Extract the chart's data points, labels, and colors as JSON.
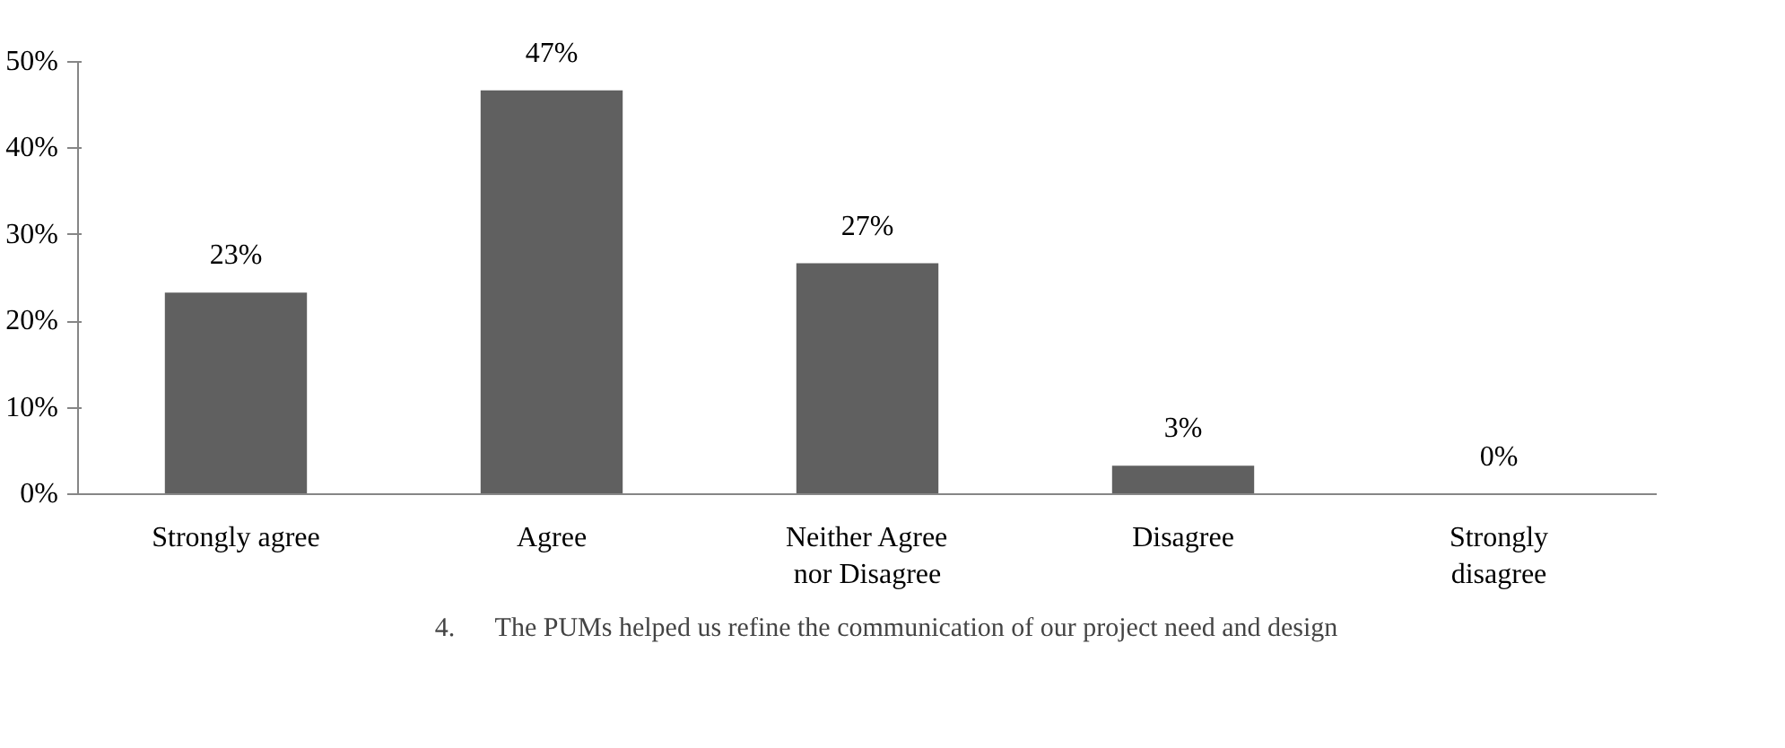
{
  "chart_data": {
    "type": "bar",
    "categories": [
      "Strongly agree",
      "Agree",
      "Neither Agree\nnor Disagree",
      "Disagree",
      "Strongly\ndisagree"
    ],
    "series": [
      {
        "name": "4.      The PUMs helped us refine the communication of our project need and design",
        "color": "#606060",
        "values": [
          23.3,
          46.7,
          26.7,
          3.3,
          0
        ],
        "value_labels": [
          "23%",
          "47%",
          "27%",
          "3%",
          "0%"
        ]
      }
    ],
    "ylim": [
      0,
      50
    ],
    "yticks": [
      {
        "value": 0,
        "label": "0%"
      },
      {
        "value": 10,
        "label": "10%"
      },
      {
        "value": 20,
        "label": "20%"
      },
      {
        "value": 30,
        "label": "30%"
      },
      {
        "value": 40,
        "label": "40%"
      },
      {
        "value": 50,
        "label": "50%"
      }
    ],
    "grid": false,
    "legend": "bottom"
  }
}
